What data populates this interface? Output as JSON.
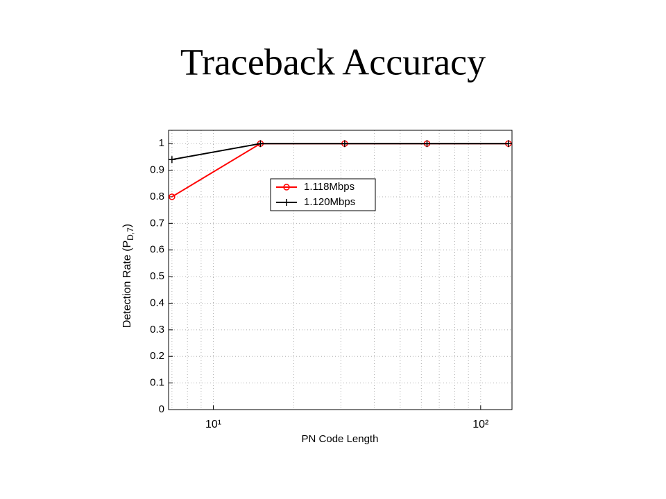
{
  "chart_data": {
    "type": "line",
    "title": "Traceback Accuracy",
    "xlabel": "PN Code Length",
    "ylabel": {
      "main": "Detection Rate (P",
      "sub": "D,7",
      "end": ")"
    },
    "x": [
      7,
      15,
      31,
      63,
      127
    ],
    "series": [
      {
        "name": "1.118Mbps",
        "color": "#ff0000",
        "marker": "circle",
        "values": [
          0.8,
          1,
          1,
          1,
          1
        ]
      },
      {
        "name": "1.120Mbps",
        "color": "#000000",
        "marker": "plus",
        "values": [
          0.94,
          1,
          1,
          1,
          1
        ]
      }
    ],
    "xscale": "log",
    "xlim": [
      6.8,
      131
    ],
    "xticks": [
      {
        "value": 10,
        "label": "10¹"
      },
      {
        "value": 100,
        "label": "10²"
      }
    ],
    "xminorticks": [
      7,
      8,
      9,
      20,
      30,
      40,
      50,
      60,
      70,
      80,
      90
    ],
    "ylim": [
      0,
      1.05
    ],
    "yticks": [
      0,
      0.1,
      0.2,
      0.3,
      0.4,
      0.5,
      0.6,
      0.7,
      0.8,
      0.9,
      1
    ],
    "grid": true,
    "legend": "top-center"
  }
}
